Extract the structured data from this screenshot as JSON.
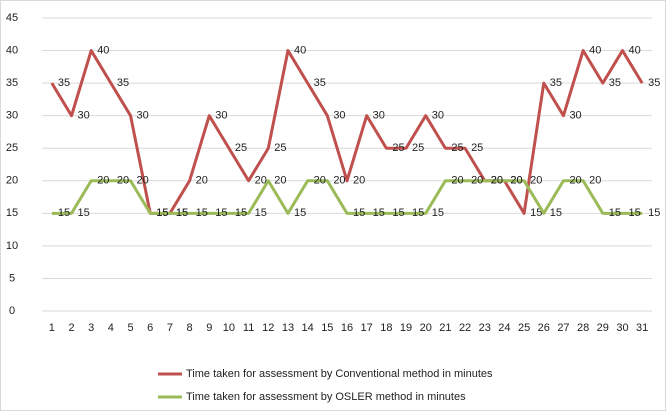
{
  "chart_data": {
    "type": "line",
    "categories": [
      "1",
      "2",
      "3",
      "4",
      "5",
      "6",
      "7",
      "8",
      "9",
      "10",
      "11",
      "12",
      "13",
      "14",
      "15",
      "16",
      "17",
      "18",
      "19",
      "20",
      "21",
      "22",
      "23",
      "24",
      "25",
      "26",
      "27",
      "28",
      "29",
      "30",
      "31"
    ],
    "series": [
      {
        "name": "Time taken for assessment by Conventional method in minutes",
        "color": "#c0504d",
        "values": [
          35,
          30,
          40,
          35,
          30,
          15,
          15,
          20,
          30,
          25,
          20,
          25,
          40,
          35,
          30,
          20,
          30,
          25,
          25,
          30,
          25,
          25,
          20,
          20,
          15,
          35,
          30,
          40,
          35,
          40,
          35
        ]
      },
      {
        "name": "Time taken for assessment by OSLER method in minutes",
        "color": "#9bbb59",
        "values": [
          15,
          15,
          20,
          20,
          20,
          15,
          15,
          15,
          15,
          15,
          15,
          20,
          15,
          20,
          20,
          15,
          15,
          15,
          15,
          15,
          20,
          20,
          20,
          20,
          20,
          15,
          20,
          20,
          15,
          15,
          15
        ]
      }
    ],
    "ylim": [
      0,
      45
    ],
    "yticks": [
      0,
      5,
      10,
      15,
      20,
      25,
      30,
      35,
      40,
      45
    ],
    "grid": true,
    "legend": "bottom"
  }
}
